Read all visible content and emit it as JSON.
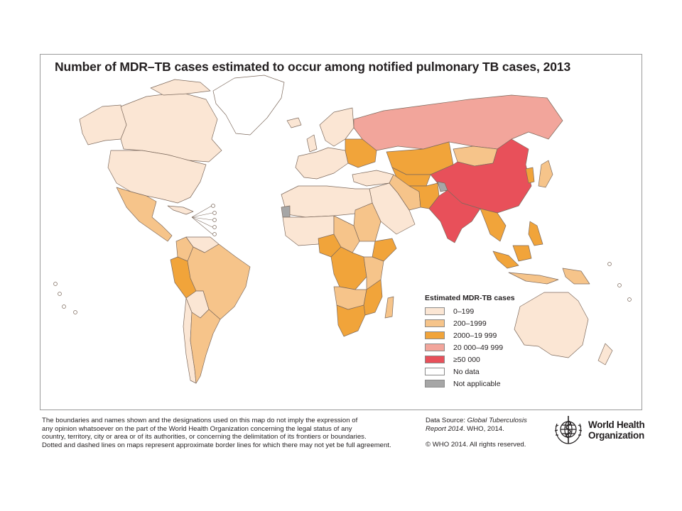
{
  "map": {
    "title": "Number of MDR–TB cases estimated to occur among notified pulmonary TB cases, 2013"
  },
  "colors": {
    "c0": "#fbe6d4",
    "c1": "#f6c48a",
    "c2": "#f1a43a",
    "c3": "#f2a59b",
    "c4": "#e8505a",
    "nodata": "#ffffff",
    "na": "#a6a6a6",
    "border": "#7d6a5d"
  },
  "legend": {
    "title": "Estimated MDR-TB cases",
    "items": [
      {
        "label": "0–199",
        "color": "#fbe6d4"
      },
      {
        "label": "200–1999",
        "color": "#f6c48a"
      },
      {
        "label": "2000–19 999",
        "color": "#f1a43a"
      },
      {
        "label": "20 000–49 999",
        "color": "#f2a59b"
      },
      {
        "label": "≥50 000",
        "color": "#e8505a"
      },
      {
        "label": "No data",
        "color": "#ffffff"
      },
      {
        "label": "Not applicable",
        "color": "#a6a6a6"
      }
    ]
  },
  "footer": {
    "disclaimer": [
      "The boundaries and names shown and the designations used on this map do not imply the expression of",
      "any opinion whatsoever on the part of the World Health Organization concerning the legal status of any",
      "country, territory, city or area or of its authorities, or concerning the delimitation of its frontiers or boundaries.",
      "Dotted and dashed lines on maps represent approximate border lines for which there may not yet be full agreement."
    ],
    "source_prefix": "Data Source: ",
    "source_title": "Global Tuberculosis Report 2014",
    "source_suffix": ". WHO, 2014.",
    "copyright": "© WHO 2014. All rights reserved."
  },
  "logo": {
    "line1": "World Health",
    "line2": "Organization"
  }
}
